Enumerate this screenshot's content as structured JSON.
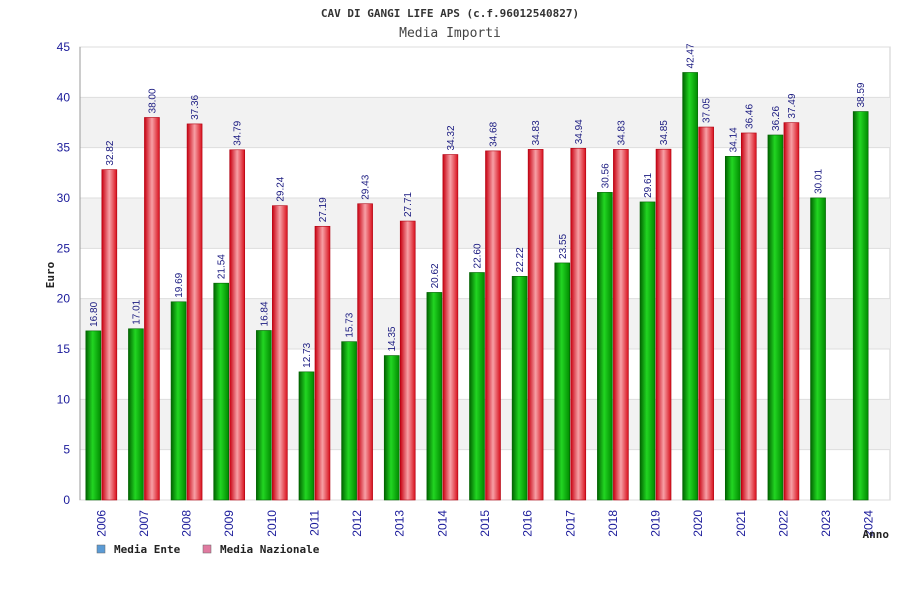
{
  "header": {
    "title": "CAV DI GANGI LIFE APS (c.f.96012540827)",
    "subtitle": "Media Importi"
  },
  "chart_data": {
    "type": "bar",
    "ylabel": "Euro",
    "xlabel": "Anno",
    "ylim": [
      0,
      45
    ],
    "yticks": [
      0,
      5,
      10,
      15,
      20,
      25,
      30,
      35,
      40,
      45
    ],
    "grid": "horizontal alternating bands",
    "legend_position": "bottom-left",
    "categories": [
      "2006",
      "2007",
      "2008",
      "2009",
      "2010",
      "2011",
      "2012",
      "2013",
      "2014",
      "2015",
      "2016",
      "2017",
      "2018",
      "2019",
      "2020",
      "2021",
      "2022",
      "2023",
      "2024"
    ],
    "series": [
      {
        "name": "Media Ente",
        "color": "#00b000",
        "legend_color": "#5b9bd5",
        "values": [
          16.8,
          17.01,
          19.69,
          21.54,
          16.84,
          12.73,
          15.73,
          14.35,
          20.62,
          22.6,
          22.22,
          23.55,
          30.56,
          29.61,
          42.47,
          34.14,
          36.26,
          30.01,
          38.59
        ]
      },
      {
        "name": "Media Nazionale",
        "color": "#e8202a",
        "legend_color": "#e07aa0",
        "values": [
          32.82,
          38.0,
          37.36,
          34.79,
          29.24,
          27.19,
          29.43,
          27.71,
          34.32,
          34.68,
          34.83,
          34.94,
          34.83,
          34.85,
          37.05,
          36.46,
          37.49,
          null,
          null
        ]
      }
    ]
  }
}
